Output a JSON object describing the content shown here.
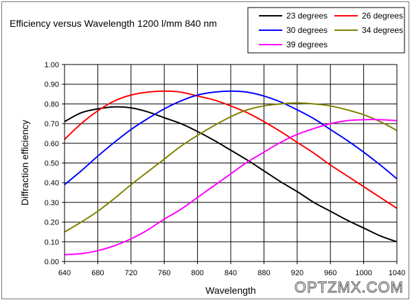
{
  "chart_data": {
    "type": "line",
    "title": "Efficiency versus Wavelength  1200 l/mm 840 nm",
    "xlabel": "Wavelength",
    "ylabel": "Diffraction efficiency",
    "xlim": [
      640,
      1040
    ],
    "ylim": [
      0,
      1
    ],
    "x_ticks": [
      "640",
      "680",
      "720",
      "760",
      "800",
      "840",
      "880",
      "920",
      "960",
      "1000",
      "1040"
    ],
    "y_ticks": [
      "0.00",
      "0.10",
      "0.20",
      "0.30",
      "0.40",
      "0.50",
      "0.60",
      "0.70",
      "0.80",
      "0.90",
      "1.00"
    ],
    "grid": true,
    "legend_position": "top-right",
    "x": [
      640,
      660,
      680,
      700,
      720,
      740,
      760,
      780,
      800,
      820,
      840,
      860,
      880,
      900,
      920,
      940,
      960,
      980,
      1000,
      1020,
      1040
    ],
    "series": [
      {
        "name": "23 degrees",
        "color": "#000000",
        "values": [
          0.71,
          0.755,
          0.775,
          0.785,
          0.78,
          0.76,
          0.73,
          0.7,
          0.66,
          0.615,
          0.565,
          0.515,
          0.46,
          0.405,
          0.355,
          0.3,
          0.255,
          0.21,
          0.17,
          0.13,
          0.1
        ]
      },
      {
        "name": "26 degrees",
        "color": "#ff0000",
        "values": [
          0.62,
          0.7,
          0.765,
          0.815,
          0.845,
          0.86,
          0.865,
          0.86,
          0.84,
          0.82,
          0.79,
          0.755,
          0.71,
          0.66,
          0.605,
          0.55,
          0.49,
          0.435,
          0.38,
          0.325,
          0.27
        ]
      },
      {
        "name": "30 degrees",
        "color": "#0000ff",
        "values": [
          0.39,
          0.46,
          0.535,
          0.605,
          0.67,
          0.725,
          0.775,
          0.815,
          0.845,
          0.86,
          0.865,
          0.86,
          0.84,
          0.81,
          0.77,
          0.725,
          0.67,
          0.615,
          0.555,
          0.49,
          0.42
        ]
      },
      {
        "name": "34 degrees",
        "color": "#808000",
        "values": [
          0.15,
          0.2,
          0.255,
          0.32,
          0.39,
          0.455,
          0.52,
          0.585,
          0.64,
          0.69,
          0.735,
          0.77,
          0.79,
          0.8,
          0.805,
          0.8,
          0.79,
          0.77,
          0.745,
          0.71,
          0.665
        ]
      },
      {
        "name": "39 degrees",
        "color": "#ff00ff",
        "values": [
          0.035,
          0.04,
          0.055,
          0.08,
          0.115,
          0.16,
          0.215,
          0.265,
          0.325,
          0.385,
          0.445,
          0.505,
          0.555,
          0.605,
          0.645,
          0.675,
          0.7,
          0.715,
          0.72,
          0.72,
          0.715
        ]
      }
    ]
  },
  "watermark": "OPTZMX.COM"
}
